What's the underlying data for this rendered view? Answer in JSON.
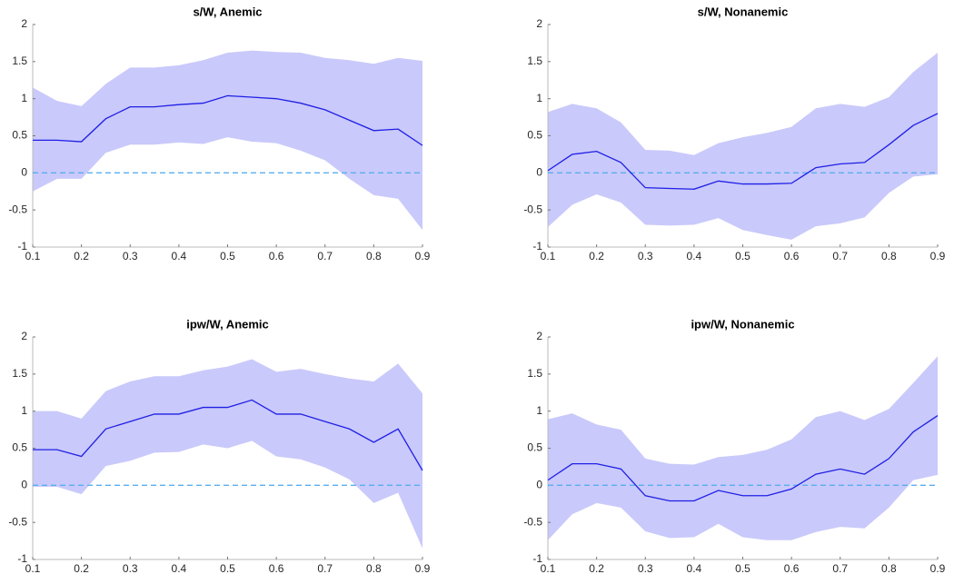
{
  "chart_data": [
    {
      "type": "line",
      "title": "s/W, Anemic",
      "x": [
        0.1,
        0.15,
        0.2,
        0.25,
        0.3,
        0.35,
        0.4,
        0.45,
        0.5,
        0.55,
        0.6,
        0.65,
        0.7,
        0.75,
        0.8,
        0.85,
        0.9
      ],
      "values": [
        0.44,
        0.44,
        0.42,
        0.73,
        0.89,
        0.89,
        0.92,
        0.94,
        1.04,
        1.02,
        1.0,
        0.94,
        0.85,
        0.71,
        0.57,
        0.59,
        0.37
      ],
      "band": {
        "upper": [
          1.15,
          0.97,
          0.9,
          1.2,
          1.42,
          1.42,
          1.45,
          1.52,
          1.62,
          1.65,
          1.63,
          1.62,
          1.55,
          1.52,
          1.47,
          1.55,
          1.51
        ],
        "lower": [
          -0.25,
          -0.08,
          -0.08,
          0.27,
          0.38,
          0.38,
          0.41,
          0.39,
          0.48,
          0.42,
          0.4,
          0.3,
          0.17,
          -0.08,
          -0.3,
          -0.35,
          -0.77
        ],
        "color": "#c9c9fb"
      },
      "color": "#1f1fe6",
      "reference_line": {
        "value": 0,
        "color": "#5aaef0",
        "dashed": true
      },
      "xlim": [
        0.1,
        0.9
      ],
      "xticks": [
        0.1,
        0.2,
        0.3,
        0.4,
        0.5,
        0.6,
        0.7,
        0.8,
        0.9
      ],
      "ylim": [
        -1,
        2
      ],
      "yticks": [
        -1,
        -0.5,
        0,
        0.5,
        1,
        1.5,
        2
      ]
    },
    {
      "type": "line",
      "title": "s/W, Nonanemic",
      "x": [
        0.1,
        0.15,
        0.2,
        0.25,
        0.3,
        0.35,
        0.4,
        0.45,
        0.5,
        0.55,
        0.6,
        0.65,
        0.7,
        0.75,
        0.8,
        0.85,
        0.9
      ],
      "values": [
        0.03,
        0.25,
        0.29,
        0.14,
        -0.2,
        -0.21,
        -0.22,
        -0.11,
        -0.15,
        -0.15,
        -0.14,
        0.07,
        0.12,
        0.14,
        0.38,
        0.64,
        0.8
      ],
      "band": {
        "upper": [
          0.82,
          0.93,
          0.87,
          0.68,
          0.31,
          0.3,
          0.24,
          0.4,
          0.48,
          0.54,
          0.62,
          0.87,
          0.93,
          0.89,
          1.02,
          1.36,
          1.62
        ],
        "lower": [
          -0.73,
          -0.43,
          -0.29,
          -0.4,
          -0.7,
          -0.71,
          -0.7,
          -0.61,
          -0.77,
          -0.84,
          -0.9,
          -0.72,
          -0.68,
          -0.6,
          -0.27,
          -0.05,
          -0.02
        ],
        "color": "#c9c9fb"
      },
      "color": "#1f1fe6",
      "reference_line": {
        "value": 0,
        "color": "#5aaef0",
        "dashed": true
      },
      "xlim": [
        0.1,
        0.9
      ],
      "xticks": [
        0.1,
        0.2,
        0.3,
        0.4,
        0.5,
        0.6,
        0.7,
        0.8,
        0.9
      ],
      "ylim": [
        -1,
        2
      ],
      "yticks": [
        -1,
        -0.5,
        0,
        0.5,
        1,
        1.5,
        2
      ]
    },
    {
      "type": "line",
      "title": "ipw/W, Anemic",
      "x": [
        0.1,
        0.15,
        0.2,
        0.25,
        0.3,
        0.35,
        0.4,
        0.45,
        0.5,
        0.55,
        0.6,
        0.65,
        0.7,
        0.75,
        0.8,
        0.85,
        0.9
      ],
      "values": [
        0.48,
        0.48,
        0.39,
        0.76,
        0.86,
        0.96,
        0.96,
        1.05,
        1.05,
        1.15,
        0.96,
        0.96,
        0.86,
        0.76,
        0.58,
        0.76,
        0.2
      ],
      "band": {
        "upper": [
          1.0,
          1.0,
          0.9,
          1.27,
          1.4,
          1.47,
          1.47,
          1.55,
          1.6,
          1.7,
          1.53,
          1.57,
          1.5,
          1.44,
          1.4,
          1.64,
          1.24
        ],
        "lower": [
          -0.02,
          -0.02,
          -0.12,
          0.26,
          0.33,
          0.44,
          0.45,
          0.55,
          0.5,
          0.6,
          0.39,
          0.35,
          0.24,
          0.08,
          -0.24,
          -0.1,
          -0.85
        ],
        "color": "#c9c9fb"
      },
      "color": "#1f1fe6",
      "reference_line": {
        "value": 0,
        "color": "#5aaef0",
        "dashed": true
      },
      "xlim": [
        0.1,
        0.9
      ],
      "xticks": [
        0.1,
        0.2,
        0.3,
        0.4,
        0.5,
        0.6,
        0.7,
        0.8,
        0.9
      ],
      "ylim": [
        -1,
        2
      ],
      "yticks": [
        -1,
        -0.5,
        0,
        0.5,
        1,
        1.5,
        2
      ]
    },
    {
      "type": "line",
      "title": "ipw/W, Nonanemic",
      "x": [
        0.1,
        0.15,
        0.2,
        0.25,
        0.3,
        0.35,
        0.4,
        0.45,
        0.5,
        0.55,
        0.6,
        0.65,
        0.7,
        0.75,
        0.8,
        0.85,
        0.9
      ],
      "values": [
        0.07,
        0.29,
        0.29,
        0.22,
        -0.14,
        -0.21,
        -0.21,
        -0.07,
        -0.14,
        -0.14,
        -0.05,
        0.15,
        0.22,
        0.15,
        0.36,
        0.72,
        0.94
      ],
      "band": {
        "upper": [
          0.89,
          0.97,
          0.82,
          0.75,
          0.36,
          0.29,
          0.28,
          0.38,
          0.41,
          0.48,
          0.62,
          0.92,
          1.0,
          0.88,
          1.03,
          1.38,
          1.74
        ],
        "lower": [
          -0.74,
          -0.39,
          -0.24,
          -0.3,
          -0.62,
          -0.71,
          -0.7,
          -0.52,
          -0.7,
          -0.74,
          -0.74,
          -0.63,
          -0.56,
          -0.58,
          -0.3,
          0.07,
          0.14
        ],
        "color": "#c9c9fb"
      },
      "color": "#1f1fe6",
      "reference_line": {
        "value": 0,
        "color": "#5aaef0",
        "dashed": true
      },
      "xlim": [
        0.1,
        0.9
      ],
      "xticks": [
        0.1,
        0.2,
        0.3,
        0.4,
        0.5,
        0.6,
        0.7,
        0.8,
        0.9
      ],
      "ylim": [
        -1,
        2
      ],
      "yticks": [
        -1,
        -0.5,
        0,
        0.5,
        1,
        1.5,
        2
      ]
    }
  ]
}
